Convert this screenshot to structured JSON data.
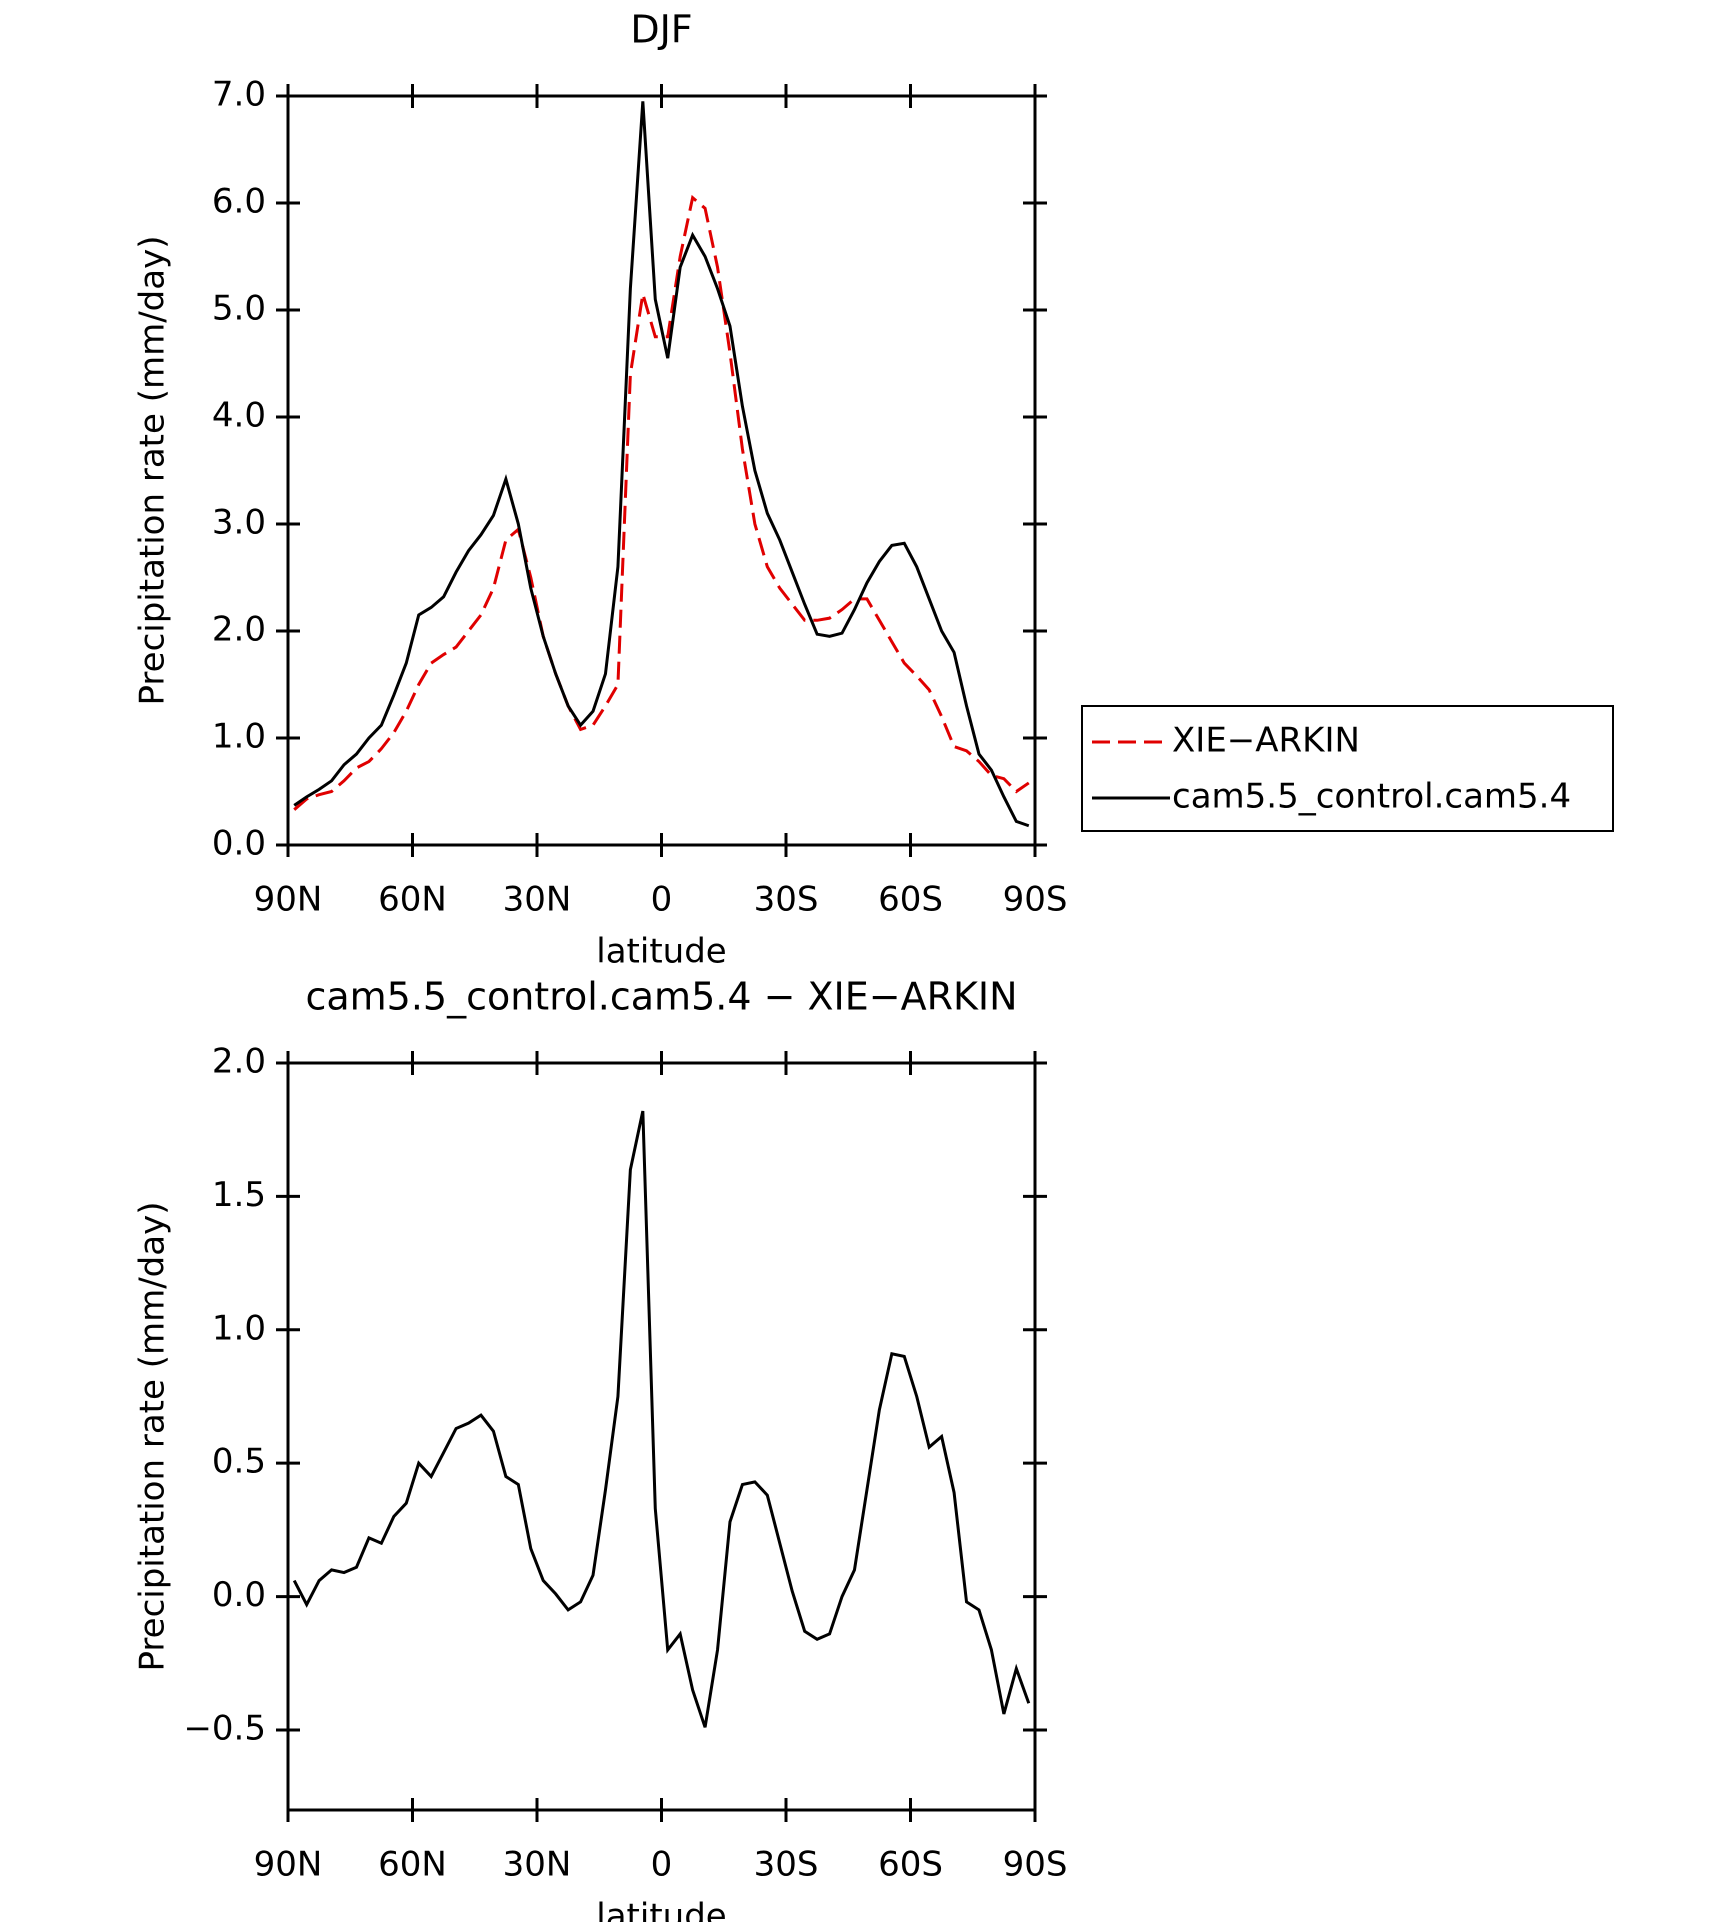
{
  "chart_data": [
    {
      "type": "line",
      "title": "DJF",
      "xlabel": "latitude",
      "ylabel": "Precipitation rate (mm/day)",
      "x": [
        88.5,
        85.5,
        82.5,
        79.5,
        76.5,
        73.5,
        70.5,
        67.5,
        64.5,
        61.5,
        58.5,
        55.5,
        52.5,
        49.5,
        46.5,
        43.5,
        40.5,
        37.5,
        34.5,
        31.5,
        28.5,
        25.5,
        22.5,
        19.5,
        16.5,
        13.5,
        10.5,
        7.5,
        4.5,
        1.5,
        -1.5,
        -4.5,
        -7.5,
        -10.5,
        -13.5,
        -16.5,
        -19.5,
        -22.5,
        -25.5,
        -28.5,
        -31.5,
        -34.5,
        -37.5,
        -40.5,
        -43.5,
        -46.5,
        -49.5,
        -52.5,
        -55.5,
        -58.5,
        -61.5,
        -64.5,
        -67.5,
        -70.5,
        -73.5,
        -76.5,
        -79.5,
        -82.5,
        -85.5,
        -88.5
      ],
      "series": [
        {
          "name": "XIE−ARKIN",
          "color": "#e00000",
          "dash": true,
          "values": [
            0.33,
            0.43,
            0.47,
            0.5,
            0.6,
            0.72,
            0.78,
            0.9,
            1.05,
            1.25,
            1.5,
            1.7,
            1.78,
            1.85,
            2.0,
            2.15,
            2.4,
            2.85,
            2.95,
            2.5,
            1.95,
            1.6,
            1.3,
            1.08,
            1.12,
            1.3,
            1.5,
            4.4,
            5.15,
            4.75,
            4.75,
            5.5,
            6.05,
            5.95,
            5.4,
            4.6,
            3.7,
            3.0,
            2.6,
            2.4,
            2.25,
            2.1,
            2.1,
            2.12,
            2.2,
            2.3,
            2.3,
            2.1,
            1.9,
            1.7,
            1.58,
            1.45,
            1.2,
            0.92,
            0.88,
            0.78,
            0.65,
            0.62,
            0.5,
            0.58
          ]
        },
        {
          "name": "cam5.5_control.cam5.4",
          "color": "#000000",
          "dash": false,
          "values": [
            0.37,
            0.45,
            0.52,
            0.6,
            0.75,
            0.85,
            1.0,
            1.12,
            1.4,
            1.7,
            2.15,
            2.22,
            2.32,
            2.55,
            2.75,
            2.9,
            3.08,
            3.42,
            3.0,
            2.4,
            1.95,
            1.6,
            1.3,
            1.12,
            1.25,
            1.6,
            2.6,
            5.2,
            6.95,
            5.1,
            4.55,
            5.4,
            5.7,
            5.5,
            5.2,
            4.85,
            4.1,
            3.5,
            3.1,
            2.85,
            2.55,
            2.25,
            1.97,
            1.95,
            1.98,
            2.2,
            2.45,
            2.65,
            2.8,
            2.82,
            2.6,
            2.3,
            2.0,
            1.8,
            1.3,
            0.85,
            0.7,
            0.45,
            0.22,
            0.18
          ]
        }
      ],
      "xlim": [
        90,
        -90
      ],
      "xticks": [
        {
          "value": 90,
          "label": "90N"
        },
        {
          "value": 60,
          "label": "60N"
        },
        {
          "value": 30,
          "label": "30N"
        },
        0,
        {
          "value": -30,
          "label": "30S"
        },
        {
          "value": -60,
          "label": "60S"
        },
        {
          "value": -90,
          "label": "90S"
        }
      ],
      "ylim": [
        0,
        7
      ],
      "yticks": [
        {
          "value": 0,
          "label": "0.0"
        },
        {
          "value": 1,
          "label": "1.0"
        },
        {
          "value": 2,
          "label": "2.0"
        },
        {
          "value": 3,
          "label": "3.0"
        },
        {
          "value": 4,
          "label": "4.0"
        },
        {
          "value": 5,
          "label": "5.0"
        },
        {
          "value": 6,
          "label": "6.0"
        },
        {
          "value": 7,
          "label": "7.0"
        }
      ],
      "legend": "right",
      "grid": false
    },
    {
      "type": "line",
      "title": "cam5.5_control.cam5.4 − XIE−ARKIN",
      "xlabel": "latitude",
      "ylabel": "Precipitation rate (mm/day)",
      "x": [
        88.5,
        85.5,
        82.5,
        79.5,
        76.5,
        73.5,
        70.5,
        67.5,
        64.5,
        61.5,
        58.5,
        55.5,
        52.5,
        49.5,
        46.5,
        43.5,
        40.5,
        37.5,
        34.5,
        31.5,
        28.5,
        25.5,
        22.5,
        19.5,
        16.5,
        13.5,
        10.5,
        7.5,
        4.5,
        1.5,
        -1.5,
        -4.5,
        -7.5,
        -10.5,
        -13.5,
        -16.5,
        -19.5,
        -22.5,
        -25.5,
        -28.5,
        -31.5,
        -34.5,
        -37.5,
        -40.5,
        -43.5,
        -46.5,
        -49.5,
        -52.5,
        -55.5,
        -58.5,
        -61.5,
        -64.5,
        -67.5,
        -70.5,
        -73.5,
        -76.5,
        -79.5,
        -82.5,
        -85.5,
        -88.5
      ],
      "series": [
        {
          "color": "#000000",
          "dash": false,
          "values": [
            0.06,
            -0.03,
            0.06,
            0.1,
            0.09,
            0.11,
            0.22,
            0.2,
            0.3,
            0.35,
            0.5,
            0.45,
            0.54,
            0.63,
            0.65,
            0.68,
            0.62,
            0.45,
            0.42,
            0.18,
            0.06,
            0.01,
            -0.05,
            -0.02,
            0.08,
            0.4,
            0.75,
            1.6,
            1.82,
            0.33,
            -0.2,
            -0.14,
            -0.35,
            -0.49,
            -0.2,
            0.28,
            0.42,
            0.43,
            0.38,
            0.2,
            0.02,
            -0.13,
            -0.16,
            -0.14,
            0.0,
            0.1,
            0.4,
            0.7,
            0.91,
            0.9,
            0.75,
            0.56,
            0.6,
            0.39,
            -0.02,
            -0.05,
            -0.2,
            -0.44,
            -0.27,
            -0.4
          ]
        }
      ],
      "xlim": [
        90,
        -90
      ],
      "xticks": [
        {
          "value": 90,
          "label": "90N"
        },
        {
          "value": 60,
          "label": "60N"
        },
        {
          "value": 30,
          "label": "30N"
        },
        0,
        {
          "value": -30,
          "label": "30S"
        },
        {
          "value": -60,
          "label": "60S"
        },
        {
          "value": -90,
          "label": "90S"
        }
      ],
      "ylim": [
        -0.8,
        2.0
      ],
      "yticks": [
        {
          "value": -0.5,
          "label": "−0.5"
        },
        {
          "value": 0,
          "label": "0.0"
        },
        {
          "value": 0.5,
          "label": "0.5"
        },
        {
          "value": 1,
          "label": "1.0"
        },
        {
          "value": 1.5,
          "label": "1.5"
        },
        {
          "value": 2,
          "label": "2.0"
        }
      ],
      "grid": false
    }
  ]
}
